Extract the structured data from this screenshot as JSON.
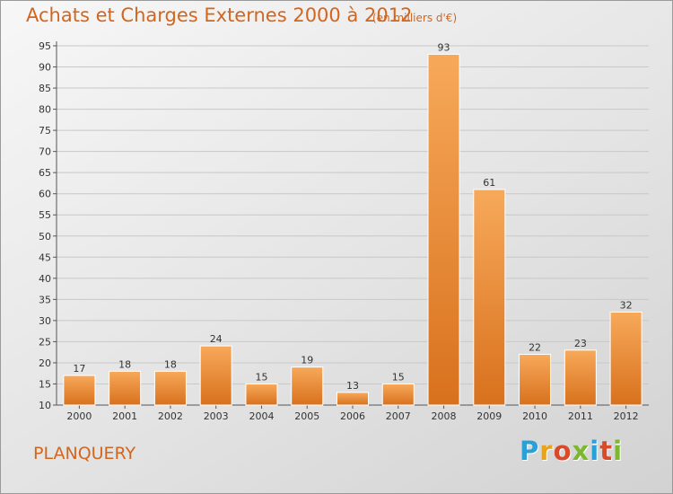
{
  "header": {
    "title": "Achats et Charges Externes 2000 à 2012",
    "unit": "(en milliers d'€)"
  },
  "footer": {
    "commune": "PLANQUERY",
    "logo_text": "Proxiti",
    "logo_colors": [
      "#2aa0d8",
      "#e8a21c",
      "#d94a2b",
      "#7cb82f",
      "#2aa0d8",
      "#d94a2b",
      "#7cb82f"
    ]
  },
  "colors": {
    "text_accent": "#d2661e",
    "bar_light": "#f7a95a",
    "bar_dark": "#d8711d",
    "grid": "#c8c8c8"
  },
  "chart_data": {
    "type": "bar",
    "title": "Achats et Charges Externes 2000 à 2012",
    "subtitle": "(en milliers d'€)",
    "xlabel": "",
    "ylabel": "",
    "categories": [
      "2000",
      "2001",
      "2002",
      "2003",
      "2004",
      "2005",
      "2006",
      "2007",
      "2008",
      "2009",
      "2010",
      "2011",
      "2012"
    ],
    "values": [
      17,
      18,
      18,
      24,
      15,
      19,
      13,
      15,
      93,
      61,
      22,
      23,
      32
    ],
    "ylim": [
      10,
      95
    ],
    "yticks": [
      10,
      15,
      20,
      25,
      30,
      35,
      40,
      45,
      50,
      55,
      60,
      65,
      70,
      75,
      80,
      85,
      90,
      95
    ],
    "grid": true,
    "legend": "none"
  }
}
